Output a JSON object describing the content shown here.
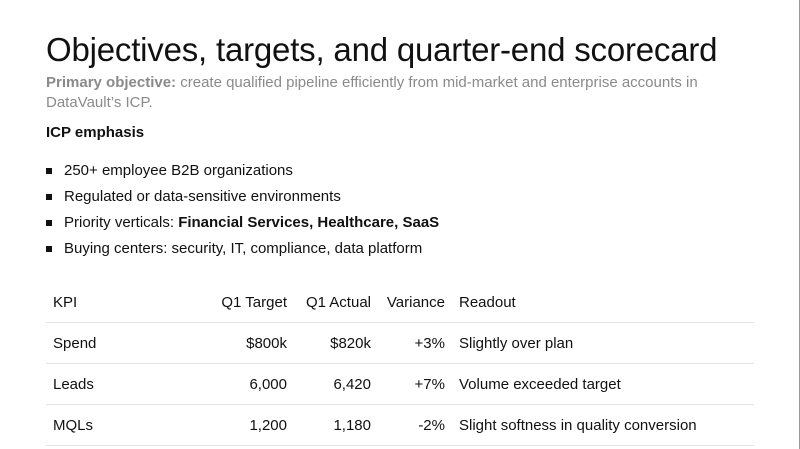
{
  "slide": {
    "title": "Objectives, targets, and quarter-end scorecard",
    "objective_label": "Primary objective:",
    "objective_text": " create qualified pipeline efficiently from mid-market and enterprise accounts in DataVault’s ICP."
  },
  "icp": {
    "heading": "ICP emphasis",
    "bullets": [
      {
        "text": "250+ employee B2B organizations"
      },
      {
        "text": "Regulated or data-sensitive environments"
      },
      {
        "prefix": "Priority verticals: ",
        "bold": "Financial Services, Healthcare, SaaS"
      },
      {
        "text": "Buying centers: security, IT, compliance, data platform"
      }
    ]
  },
  "table": {
    "headers": [
      "KPI",
      "Q1 Target",
      "Q1 Actual",
      "Variance",
      "Readout"
    ],
    "rows": [
      [
        "Spend",
        "$800k",
        "$820k",
        "+3%",
        "Slightly over plan"
      ],
      [
        "Leads",
        "6,000",
        "6,420",
        "+7%",
        "Volume exceeded target"
      ],
      [
        "MQLs",
        "1,200",
        "1,180",
        "-2%",
        "Slight softness in quality conversion"
      ]
    ]
  }
}
